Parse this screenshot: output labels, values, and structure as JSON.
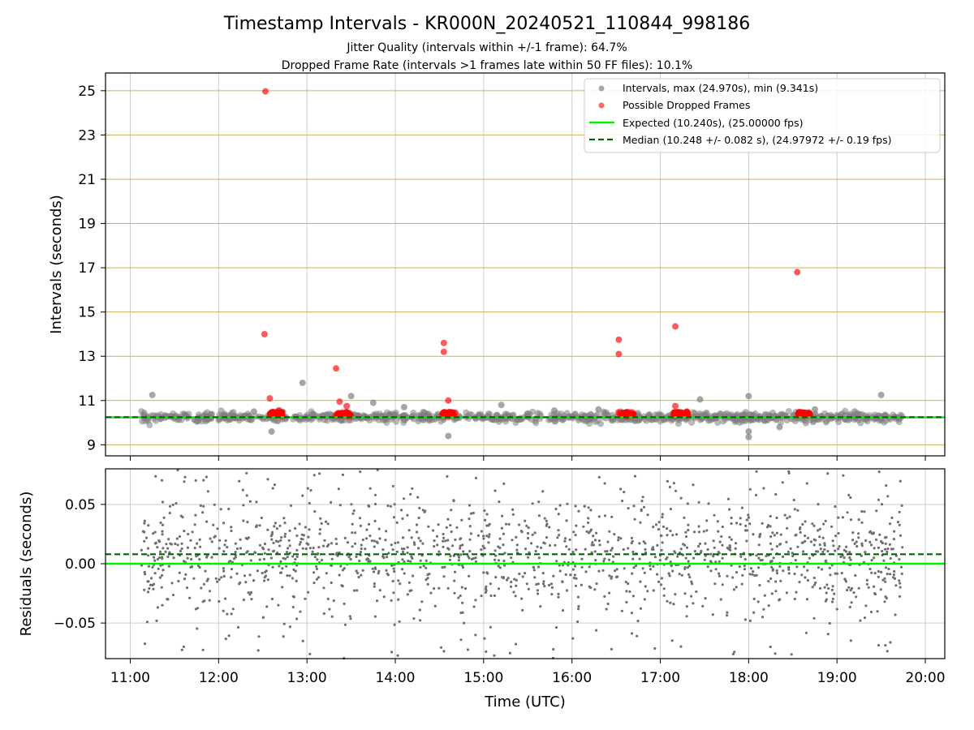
{
  "chart_data": [
    {
      "type": "scatter",
      "title": "Timestamp Intervals - KR000N_20240521_110844_998186",
      "subtitle_1": "Jitter Quality (intervals within +/-1 frame): 64.7%",
      "subtitle_2": "Dropped Frame Rate (intervals >1 frames late within 50 FF files): 10.1%",
      "ylabel": "Intervals (seconds)",
      "x_range_hours": [
        10.72,
        20.22
      ],
      "ylim": [
        8.5,
        25.8
      ],
      "yticks": [
        9,
        11,
        13,
        15,
        17,
        19,
        21,
        23,
        25
      ],
      "grid": true,
      "legend_position": "top-right",
      "colors": {
        "intervals": "#808080",
        "dropped": "#ff0000",
        "expected": "#00ee00",
        "median": "#006400",
        "hgrid": "#c8b060"
      },
      "legend": [
        {
          "label": "Intervals, max (24.970s), min (9.341s)",
          "marker": "gray-dot"
        },
        {
          "label": "Possible Dropped Frames",
          "marker": "red-dot"
        },
        {
          "label": "Expected (10.240s), (25.00000 fps)",
          "marker": "green-line"
        },
        {
          "label": "Median (10.248 +/- 0.082 s), (24.97972 +/- 0.19 fps)",
          "marker": "darkgreen-dashed"
        }
      ],
      "expected_line": 10.24,
      "median_line": 10.248,
      "series": [
        {
          "name": "Intervals, max (24.970s), min (9.341s)",
          "points": [
            [
              11.25,
              11.25
            ],
            [
              12.6,
              9.6
            ],
            [
              12.95,
              11.8
            ],
            [
              13.5,
              11.2
            ],
            [
              13.75,
              10.9
            ],
            [
              14.6,
              9.4
            ],
            [
              15.2,
              10.8
            ],
            [
              16.55,
              10.5
            ],
            [
              17.45,
              11.05
            ],
            [
              18.0,
              11.2
            ],
            [
              18.0,
              9.35
            ],
            [
              18.0,
              9.6
            ],
            [
              18.75,
              10.6
            ],
            [
              19.5,
              11.25
            ],
            [
              12.4,
              10.5
            ],
            [
              14.1,
              10.7
            ],
            [
              15.8,
              10.55
            ],
            [
              16.3,
              10.6
            ],
            [
              17.2,
              10.45
            ],
            [
              18.35,
              9.8
            ],
            [
              19.2,
              10.5
            ]
          ],
          "band_center": 10.24,
          "band_spread": 0.1,
          "x_start": 11.12,
          "x_end": 19.74
        },
        {
          "name": "Possible Dropped Frames",
          "points": [
            [
              12.53,
              24.97
            ],
            [
              12.52,
              14.0
            ],
            [
              12.58,
              11.1
            ],
            [
              13.33,
              12.45
            ],
            [
              13.37,
              10.95
            ],
            [
              13.45,
              10.75
            ],
            [
              14.55,
              13.6
            ],
            [
              14.55,
              13.2
            ],
            [
              14.6,
              11.0
            ],
            [
              16.53,
              13.75
            ],
            [
              16.53,
              13.1
            ],
            [
              17.17,
              14.35
            ],
            [
              17.17,
              10.75
            ],
            [
              18.55,
              16.8
            ],
            [
              12.68,
              10.55
            ],
            [
              14.68,
              10.45
            ],
            [
              17.3,
              10.5
            ]
          ],
          "clusters": [
            [
              12.58,
              12.72
            ],
            [
              13.33,
              13.5
            ],
            [
              14.53,
              14.67
            ],
            [
              16.52,
              16.7
            ],
            [
              17.15,
              17.32
            ],
            [
              18.55,
              18.7
            ]
          ]
        }
      ]
    },
    {
      "type": "scatter",
      "xlabel": "Time (UTC)",
      "ylabel": "Residuals (seconds)",
      "x_range_hours": [
        10.72,
        20.22
      ],
      "ylim": [
        -0.08,
        0.08
      ],
      "yticks": [
        0.05,
        0.0,
        -0.05
      ],
      "ytick_labels": [
        "0.05",
        "0.00",
        "−0.05"
      ],
      "xticks": [
        11,
        12,
        13,
        14,
        15,
        16,
        17,
        18,
        19,
        20
      ],
      "xtick_labels": [
        "11:00",
        "12:00",
        "13:00",
        "14:00",
        "15:00",
        "16:00",
        "17:00",
        "18:00",
        "19:00",
        "20:00"
      ],
      "grid": true,
      "expected_line": 0.0,
      "median_line": 0.008,
      "series": [
        {
          "name": "Residuals",
          "x_start": 11.12,
          "x_end": 19.74,
          "core_spread": 0.022,
          "outer_spread": 0.08
        }
      ]
    }
  ]
}
